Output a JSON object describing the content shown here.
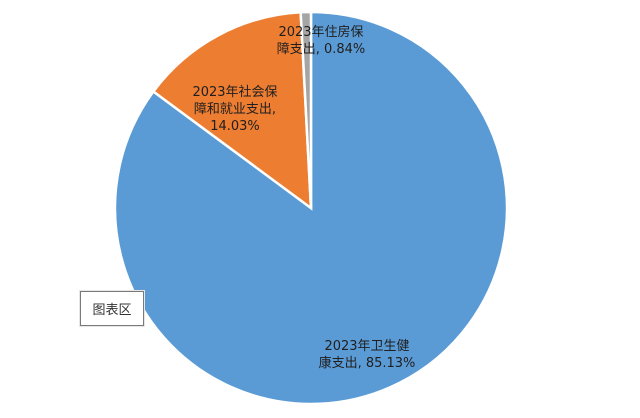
{
  "chart_data": {
    "type": "pie",
    "title": "",
    "slices": [
      {
        "label": "2023年卫生健康支出",
        "value": 85.13,
        "value_text": "85.13%",
        "color": "#5b9bd5"
      },
      {
        "label": "2023年社会保障和就业支出",
        "value": 14.03,
        "value_text": "14.03%",
        "color": "#ed7d31"
      },
      {
        "label": "2023年住房保障支出",
        "value": 0.84,
        "value_text": "0.84%",
        "color": "#a5a5a5"
      }
    ],
    "legend": "none"
  },
  "labels": {
    "health": "2023年卫生健\n康支出, 85.13%",
    "social": "2023年社会保\n障和就业支出,\n14.03%",
    "housing": "2023年住房保\n障支出, 0.84%"
  },
  "chart_area_tooltip": "图表区"
}
